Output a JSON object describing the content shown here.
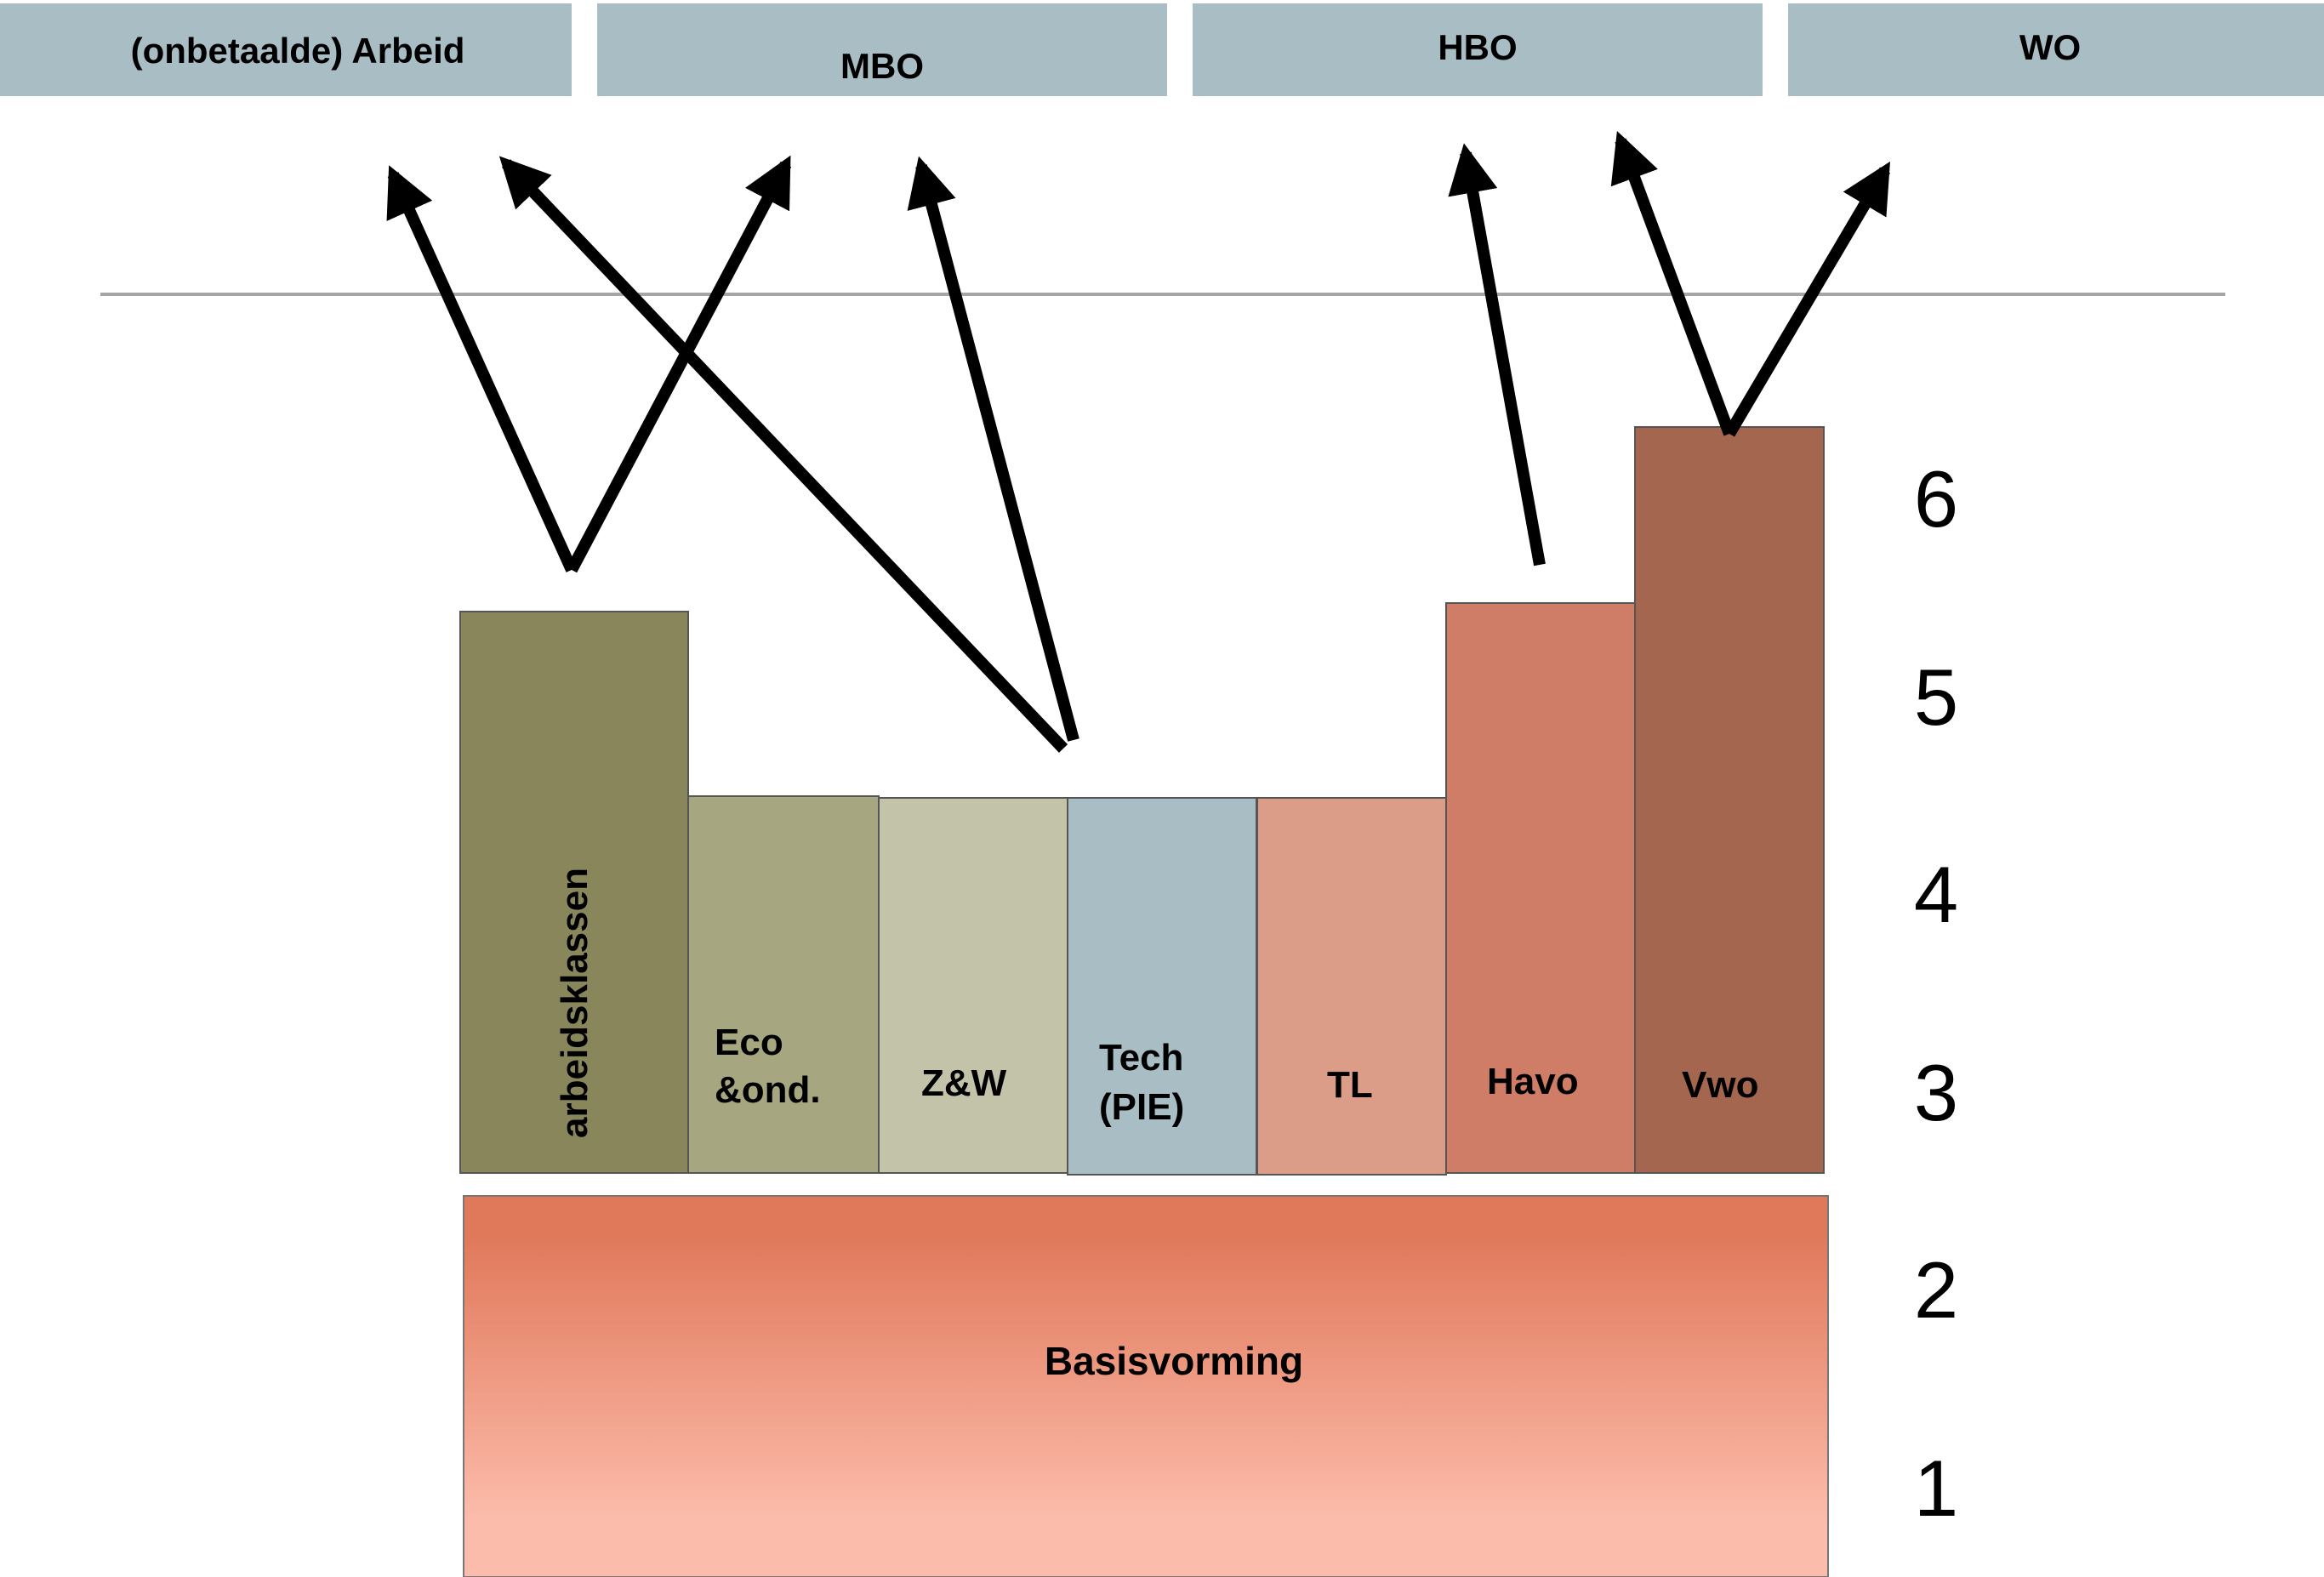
{
  "destinations": [
    {
      "id": "arbeid",
      "label": "(onbetaalde) Arbeid"
    },
    {
      "id": "mbo",
      "label": "MBO"
    },
    {
      "id": "hbo",
      "label": "HBO"
    },
    {
      "id": "wo",
      "label": "WO"
    }
  ],
  "colors": {
    "destination_box": "#a9bec4",
    "divider_line": "#a6a6a6",
    "arrow": "#000000",
    "arbeidsklassen": "#88865a",
    "eco": "#a6a680",
    "zw": "#c3c3aa",
    "tech": "#a9bec4",
    "tl": "#dc9d88",
    "havo": "#cf7d66",
    "vwo": "#a56650",
    "basis_top": "#e0785a",
    "basis_bottom": "#fcbcab"
  },
  "columns": [
    {
      "id": "arbeidsklassen",
      "label": "arbeidsklassen",
      "vertical": true,
      "top_level": 5.6
    },
    {
      "id": "eco",
      "label_lines": [
        "Eco",
        "&ond."
      ],
      "top_level": 4.65
    },
    {
      "id": "zw",
      "label_lines": [
        "Z&W"
      ],
      "top_level": 4.65
    },
    {
      "id": "tech",
      "label_lines": [
        "Tech",
        "(PIE)"
      ],
      "top_level": 4.65
    },
    {
      "id": "tl",
      "label_lines": [
        "TL"
      ],
      "top_level": 4.65
    },
    {
      "id": "havo",
      "label_lines": [
        "Havo"
      ],
      "top_level": 5.65
    },
    {
      "id": "vwo",
      "label_lines": [
        "Vwo"
      ],
      "top_level": 6.6
    }
  ],
  "foundation": {
    "label": "Basisvorming"
  },
  "levels": [
    "1",
    "2",
    "3",
    "4",
    "5",
    "6"
  ],
  "arrows": [
    {
      "from": "arbeidsklassen",
      "to": "arbeid"
    },
    {
      "from": "arbeidsklassen",
      "to": "mbo"
    },
    {
      "from": "tech",
      "to": "arbeid"
    },
    {
      "from": "tech",
      "to": "mbo"
    },
    {
      "from": "havo",
      "to": "hbo"
    },
    {
      "from": "vwo",
      "to": "hbo"
    },
    {
      "from": "vwo",
      "to": "wo"
    }
  ]
}
